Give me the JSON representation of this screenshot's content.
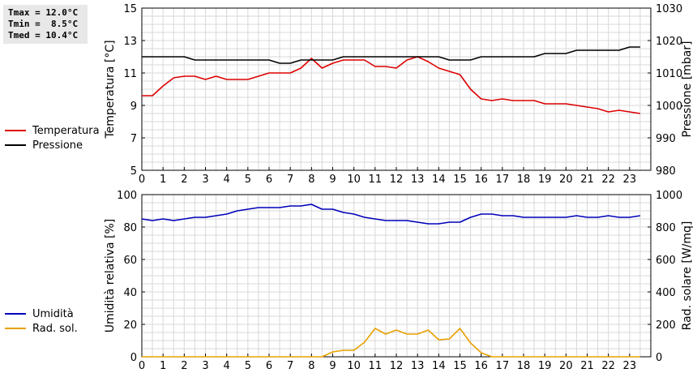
{
  "stats": {
    "tmax": "Tmax = 12.0°C",
    "tmin": "Tmin =  8.5°C",
    "tmed": "Tmed = 10.4°C"
  },
  "chart_data": [
    {
      "type": "line",
      "ylabel": "Temperatura [°C]",
      "y2label": "Pressione [mbar]",
      "xlim": [
        0,
        24
      ],
      "ylim": [
        5,
        15
      ],
      "y2lim": [
        980,
        1030
      ],
      "xticks": [
        "0",
        "1",
        "2",
        "3",
        "4",
        "5",
        "6",
        "7",
        "8",
        "9",
        "10",
        "11",
        "12",
        "13",
        "14",
        "15",
        "16",
        "17",
        "18",
        "19",
        "20",
        "21",
        "22",
        "23"
      ],
      "yticks": [
        "5",
        "7",
        "9",
        "11",
        "13",
        "15"
      ],
      "y2ticks": [
        "980",
        "990",
        "1000",
        "1010",
        "1020",
        "1030"
      ],
      "grid": true,
      "legend_placement": "left",
      "series": [
        {
          "name": "Temperatura",
          "axis": "left",
          "color": "#dd0000",
          "x": [
            0,
            0.5,
            1,
            1.5,
            2,
            2.5,
            3,
            3.5,
            4,
            4.5,
            5,
            5.5,
            6,
            6.5,
            7,
            7.5,
            8,
            8.5,
            9,
            9.5,
            10,
            10.5,
            11,
            11.5,
            12,
            12.5,
            13,
            13.5,
            14,
            14.5,
            15,
            15.5,
            16,
            16.5,
            17,
            17.5,
            18,
            18.5,
            19,
            19.5,
            20,
            20.5,
            21,
            21.5,
            22,
            22.5,
            23,
            23.5
          ],
          "values": [
            9.6,
            9.6,
            10.2,
            10.7,
            10.8,
            10.8,
            10.6,
            10.8,
            10.6,
            10.6,
            10.6,
            10.8,
            11.0,
            11.0,
            11.0,
            11.3,
            11.9,
            11.3,
            11.6,
            11.8,
            11.8,
            11.8,
            11.4,
            11.4,
            11.3,
            11.8,
            12.0,
            11.7,
            11.3,
            11.1,
            10.9,
            10.0,
            9.4,
            9.3,
            9.4,
            9.3,
            9.3,
            9.3,
            9.1,
            9.1,
            9.1,
            9.0,
            8.9,
            8.8,
            8.6,
            8.7,
            8.6,
            8.5
          ]
        },
        {
          "name": "Pressione",
          "axis": "right",
          "color": "#000000",
          "x": [
            0,
            0.5,
            1,
            1.5,
            2,
            2.5,
            3,
            3.5,
            4,
            4.5,
            5,
            5.5,
            6,
            6.5,
            7,
            7.5,
            8,
            8.5,
            9,
            9.5,
            10,
            10.5,
            11,
            11.5,
            12,
            12.5,
            13,
            13.5,
            14,
            14.5,
            15,
            15.5,
            16,
            16.5,
            17,
            17.5,
            18,
            18.5,
            19,
            19.5,
            20,
            20.5,
            21,
            21.5,
            22,
            22.5,
            23,
            23.5
          ],
          "values": [
            1015,
            1015,
            1015,
            1015,
            1015,
            1014,
            1014,
            1014,
            1014,
            1014,
            1014,
            1014,
            1014,
            1013,
            1013,
            1014,
            1014,
            1014,
            1014,
            1015,
            1015,
            1015,
            1015,
            1015,
            1015,
            1015,
            1015,
            1015,
            1015,
            1014,
            1014,
            1014,
            1015,
            1015,
            1015,
            1015,
            1015,
            1015,
            1016,
            1016,
            1016,
            1017,
            1017,
            1017,
            1017,
            1017,
            1018,
            1018
          ]
        }
      ]
    },
    {
      "type": "line",
      "ylabel": "Umidità relativa [%]",
      "y2label": "Rad. solare [W/mq]",
      "xlim": [
        0,
        24
      ],
      "ylim": [
        0,
        100
      ],
      "y2lim": [
        0,
        1000
      ],
      "xticks": [
        "0",
        "1",
        "2",
        "3",
        "4",
        "5",
        "6",
        "7",
        "8",
        "9",
        "10",
        "11",
        "12",
        "13",
        "14",
        "15",
        "16",
        "17",
        "18",
        "19",
        "20",
        "21",
        "22",
        "23"
      ],
      "yticks": [
        "0",
        "20",
        "40",
        "60",
        "80",
        "100"
      ],
      "y2ticks": [
        "0",
        "200",
        "400",
        "600",
        "800",
        "1000"
      ],
      "grid": true,
      "legend_placement": "left",
      "series": [
        {
          "name": "Umidità",
          "axis": "left",
          "color": "#0000bb",
          "x": [
            0,
            0.5,
            1,
            1.5,
            2,
            2.5,
            3,
            3.5,
            4,
            4.5,
            5,
            5.5,
            6,
            6.5,
            7,
            7.5,
            8,
            8.5,
            9,
            9.5,
            10,
            10.5,
            11,
            11.5,
            12,
            12.5,
            13,
            13.5,
            14,
            14.5,
            15,
            15.5,
            16,
            16.5,
            17,
            17.5,
            18,
            18.5,
            19,
            19.5,
            20,
            20.5,
            21,
            21.5,
            22,
            22.5,
            23,
            23.5
          ],
          "values": [
            85,
            84,
            85,
            84,
            85,
            86,
            86,
            87,
            88,
            90,
            91,
            92,
            92,
            92,
            93,
            93,
            94,
            91,
            91,
            89,
            88,
            86,
            85,
            84,
            84,
            84,
            83,
            82,
            82,
            83,
            83,
            86,
            88,
            88,
            87,
            87,
            86,
            86,
            86,
            86,
            86,
            87,
            86,
            86,
            87,
            86,
            86,
            87
          ]
        },
        {
          "name": "Rad. sol.",
          "axis": "right",
          "color": "#e8a000",
          "x": [
            0,
            0.5,
            1,
            1.5,
            2,
            2.5,
            3,
            3.5,
            4,
            4.5,
            5,
            5.5,
            6,
            6.5,
            7,
            7.5,
            8,
            8.5,
            9,
            9.5,
            10,
            10.5,
            11,
            11.5,
            12,
            12.5,
            13,
            13.5,
            14,
            14.5,
            15,
            15.5,
            16,
            16.5,
            17,
            17.5,
            18,
            18.5,
            19,
            19.5,
            20,
            20.5,
            21,
            21.5,
            22,
            22.5,
            23,
            23.5
          ],
          "values": [
            0,
            0,
            0,
            0,
            0,
            0,
            0,
            0,
            0,
            0,
            0,
            0,
            0,
            0,
            0,
            0,
            0,
            0,
            30,
            40,
            40,
            90,
            175,
            140,
            165,
            140,
            140,
            165,
            105,
            110,
            175,
            85,
            25,
            0,
            0,
            0,
            0,
            0,
            0,
            0,
            0,
            0,
            0,
            0,
            0,
            0,
            0,
            0
          ]
        }
      ]
    }
  ]
}
